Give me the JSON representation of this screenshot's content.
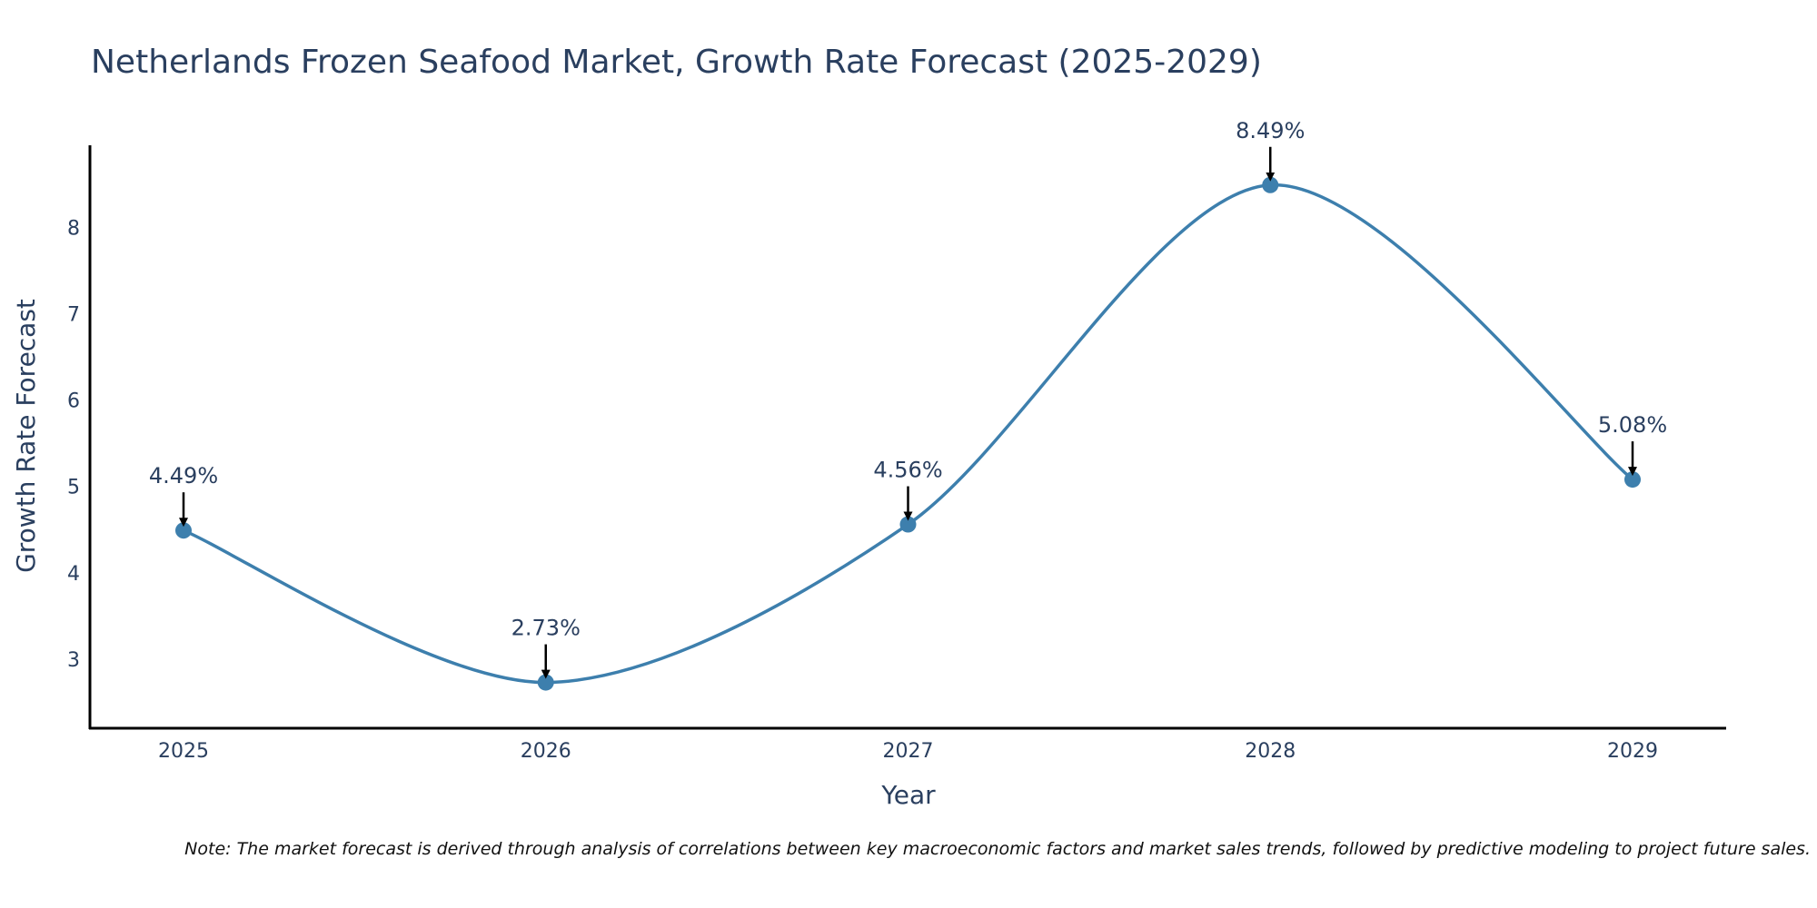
{
  "chart_data": {
    "type": "line",
    "title": "Netherlands Frozen Seafood Market, Growth Rate Forecast (2025-2029)",
    "xlabel": "Year",
    "ylabel": "Growth Rate Forecast",
    "categories": [
      "2025",
      "2026",
      "2027",
      "2028",
      "2029"
    ],
    "values": [
      4.49,
      2.73,
      4.56,
      8.49,
      5.08
    ],
    "data_labels": [
      "4.49%",
      "2.73%",
      "4.56%",
      "8.49%",
      "5.08%"
    ],
    "y_ticks": [
      3,
      4,
      5,
      6,
      7,
      8
    ],
    "ylim": [
      2.2,
      8.95
    ],
    "grid": false,
    "line_color": "#3d7fad",
    "marker_color": "#3d7fad",
    "note": "Note: The market forecast is derived through analysis of correlations between key macroeconomic factors and market sales trends, followed by predictive modeling to project future sales."
  }
}
